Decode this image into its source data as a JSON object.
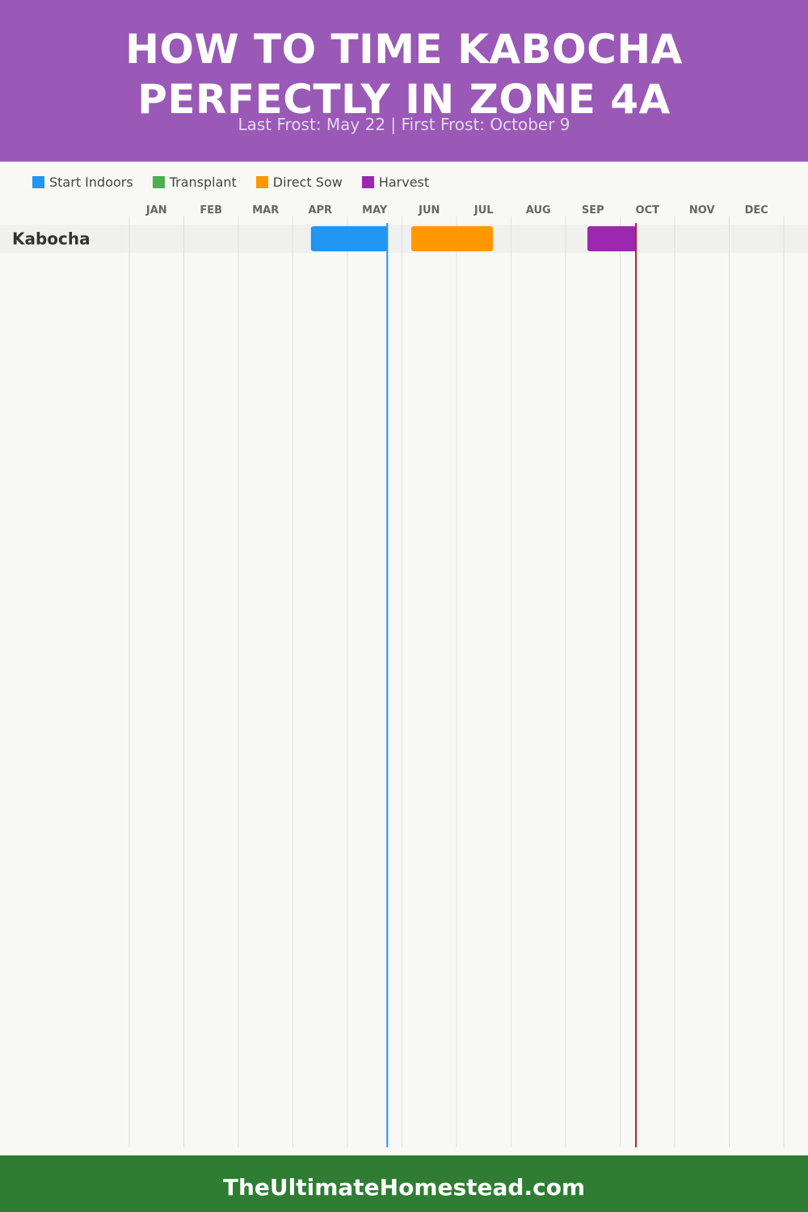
{
  "header": {
    "title": "HOW TO TIME KABOCHA PERFECTLY IN ZONE 4A",
    "subtitle": "Last Frost: May 22 | First Frost: October 9",
    "background_color": "#9a59b6"
  },
  "legend": [
    {
      "label": "Start Indoors",
      "color": "#2196f3"
    },
    {
      "label": "Transplant",
      "color": "#4caf50"
    },
    {
      "label": "Direct Sow",
      "color": "#ff9800"
    },
    {
      "label": "Harvest",
      "color": "#9c27b0"
    }
  ],
  "chart_data": {
    "type": "gantt",
    "categories": [
      "JAN",
      "FEB",
      "MAR",
      "APR",
      "MAY",
      "JUN",
      "JUL",
      "AUG",
      "SEP",
      "OCT",
      "NOV",
      "DEC"
    ],
    "rows": [
      {
        "label": "Kabocha",
        "segments": [
          {
            "series": "Start Indoors",
            "start": "Apr 10",
            "end": "May 22",
            "start_month": 3.33,
            "end_month": 4.73,
            "color": "#2196f3"
          },
          {
            "series": "Direct Sow",
            "start": "Jun 5",
            "end": "Jul 20",
            "start_month": 5.17,
            "end_month": 6.67,
            "color": "#ff9800"
          },
          {
            "series": "Harvest",
            "start": "Sep 12",
            "end": "Oct 9",
            "start_month": 8.4,
            "end_month": 9.3,
            "color": "#9c27b0"
          }
        ]
      }
    ],
    "markers": [
      {
        "name": "Last Frost",
        "date": "May 22",
        "month": 4.73,
        "color": "#2196f3"
      },
      {
        "name": "First Frost",
        "date": "October 9",
        "month": 9.29,
        "color": "#b22222"
      }
    ],
    "xlim": [
      0,
      12
    ],
    "grid": true,
    "legend_position": "top-left"
  },
  "footer": {
    "text": "TheUltimateHomestead.com",
    "background_color": "#2e7d32"
  }
}
